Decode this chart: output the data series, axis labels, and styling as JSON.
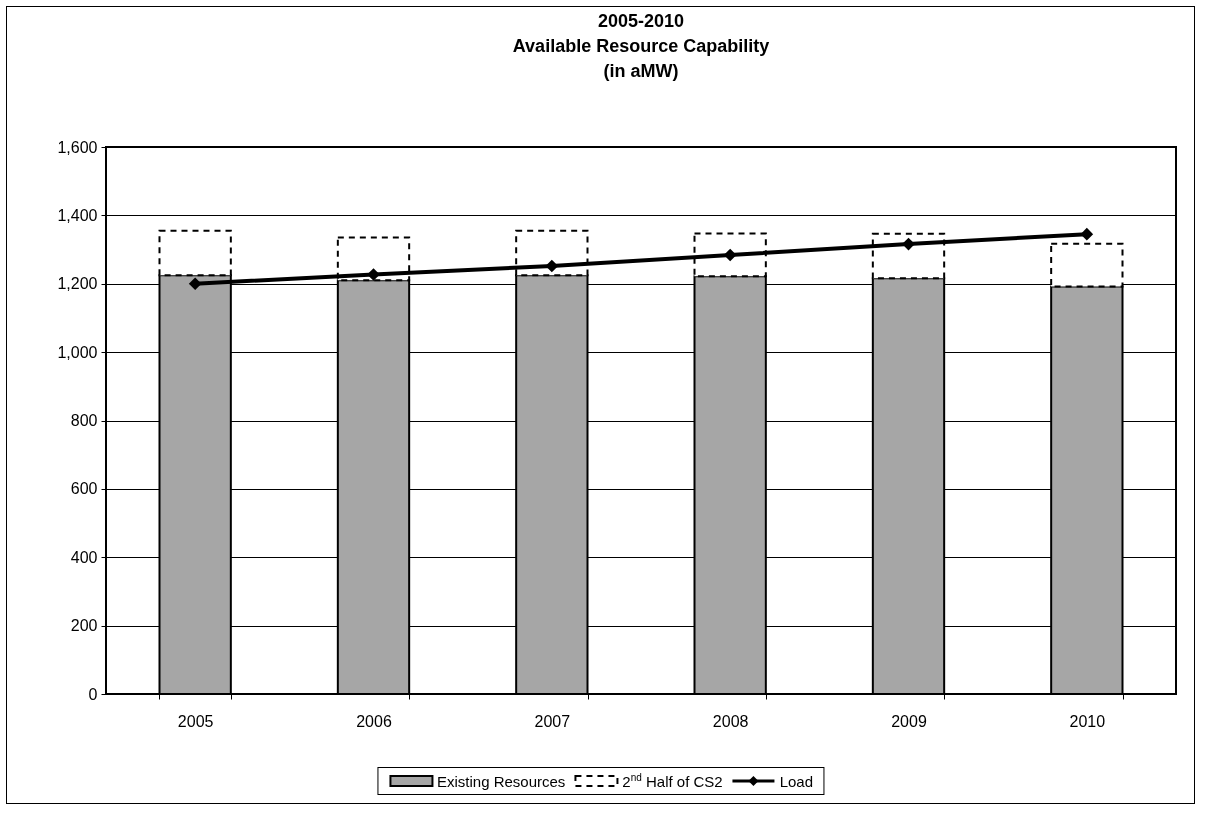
{
  "chart_data": {
    "type": "bar",
    "title": "2005-2010\nAvailable Resource Capability\n(in aMW)",
    "categories": [
      "2005",
      "2006",
      "2007",
      "2008",
      "2009",
      "2010"
    ],
    "stacked": true,
    "series": [
      {
        "name": "Existing Resources",
        "color": "#a6a6a6",
        "line_style": "solid",
        "values": [
          1225,
          1210,
          1225,
          1222,
          1216,
          1192
        ]
      },
      {
        "name": "2$^{nd}$ Half of CS2",
        "color": "#ffffff",
        "line_style": "dashed",
        "values": [
          130,
          125,
          130,
          125,
          130,
          125
        ]
      },
      {
        "name": "Load",
        "type": "line",
        "color": "#000000",
        "marker": "diamond",
        "values": [
          1200,
          1227,
          1252,
          1284,
          1316,
          1345
        ]
      }
    ],
    "ylim": [
      0,
      1600
    ],
    "yticks": [
      0,
      200,
      400,
      600,
      800,
      {
        "value": 1000,
        "label": "1,000"
      },
      {
        "value": 1200,
        "label": "1,200"
      },
      {
        "value": 1400,
        "label": "1,400"
      },
      {
        "value": 1600,
        "label": "1,600"
      }
    ],
    "grid": "y",
    "legend": "bottom"
  }
}
